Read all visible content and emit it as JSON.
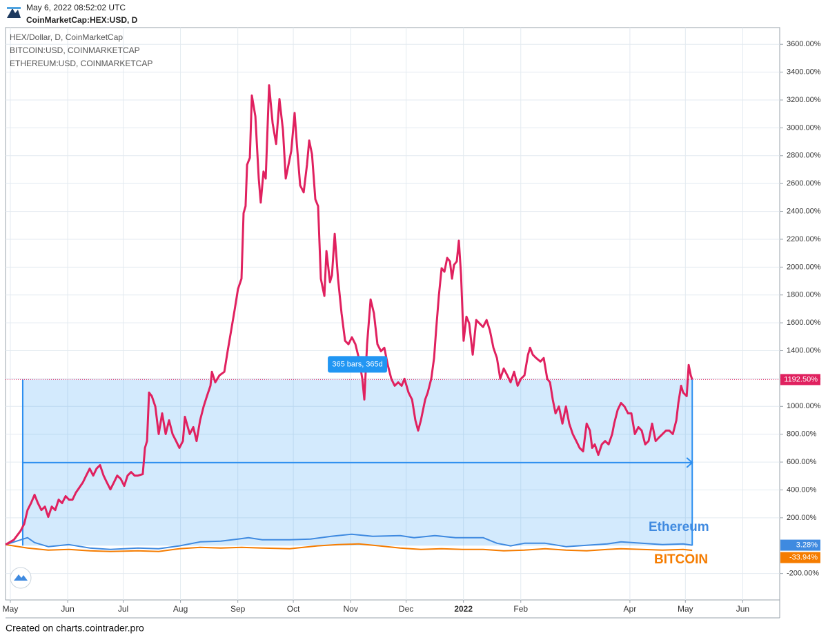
{
  "chart_data": {
    "type": "line",
    "subtitle": "May 6, 2022 08:52:02 UTC",
    "title": "CoinMarketCap:HEX:USD, D",
    "footer": "Created on charts.cointrader.pro",
    "annotations": [
      "Ethereum",
      "BITCOIN"
    ],
    "measure": {
      "label": "365 bars, 365d",
      "x": [
        6.7,
        368.7
      ],
      "y": [
        0,
        1192.5
      ]
    },
    "xlim": [
      -2.61,
      416.0
    ],
    "xticks": [
      {
        "value": 0,
        "label": "May"
      },
      {
        "value": 31,
        "label": "Jun"
      },
      {
        "value": 61,
        "label": "Jul"
      },
      {
        "value": 92,
        "label": "Aug"
      },
      {
        "value": 123,
        "label": "Sep"
      },
      {
        "value": 153,
        "label": "Oct"
      },
      {
        "value": 184,
        "label": "Nov"
      },
      {
        "value": 214,
        "label": "Dec"
      },
      {
        "value": 245,
        "label": "2022"
      },
      {
        "value": 276,
        "label": "Feb"
      },
      {
        "value": 335,
        "label": "Apr"
      },
      {
        "value": 365,
        "label": "May"
      },
      {
        "value": 396,
        "label": "Jun"
      }
    ],
    "ylim": [
      -390,
      3720
    ],
    "yticks": [
      {
        "value": -200,
        "label": "-200.00%"
      },
      {
        "value": 200,
        "label": "200.00%"
      },
      {
        "value": 400,
        "label": "400.00%"
      },
      {
        "value": 600,
        "label": "600.00%"
      },
      {
        "value": 800,
        "label": "800.00%"
      },
      {
        "value": 1000,
        "label": "1000.00%"
      },
      {
        "value": 1200,
        "label": "1200.00%"
      },
      {
        "value": 1400,
        "label": "1400.00%"
      },
      {
        "value": 1600,
        "label": "1600.00%"
      },
      {
        "value": 1800,
        "label": "1800.00%"
      },
      {
        "value": 2000,
        "label": "2000.00%"
      },
      {
        "value": 2200,
        "label": "2200.00%"
      },
      {
        "value": 2400,
        "label": "2400.00%"
      },
      {
        "value": 2600,
        "label": "2600.00%"
      },
      {
        "value": 2800,
        "label": "2800.00%"
      },
      {
        "value": 3000,
        "label": "3000.00%"
      },
      {
        "value": 3200,
        "label": "3200.00%"
      },
      {
        "value": 3400,
        "label": "3400.00%"
      },
      {
        "value": 3600,
        "label": "3600.00%"
      }
    ],
    "grid": true,
    "series": [
      {
        "name": "HEX/Dollar, D, CoinMarketCap",
        "color": "#e0215f",
        "last_value_label": "1192.50%",
        "x": [
          -2.6,
          1.9,
          5.6,
          7.5,
          9.3,
          11.2,
          13.1,
          14.9,
          16.8,
          18.7,
          20.5,
          22.4,
          24.3,
          26.1,
          28.0,
          29.9,
          31.7,
          33.6,
          35.4,
          39.2,
          41.0,
          42.9,
          44.8,
          46.6,
          48.5,
          50.4,
          52.2,
          54.1,
          56.0,
          57.8,
          59.7,
          61.6,
          63.4,
          65.3,
          67.2,
          69.0,
          71.6,
          72.8,
          73.9,
          75.0,
          76.5,
          78.4,
          80.2,
          82.1,
          84.0,
          85.8,
          87.7,
          89.6,
          91.4,
          93.3,
          94.4,
          97.0,
          98.9,
          100.7,
          102.6,
          104.5,
          106.3,
          108.2,
          109.0,
          110.8,
          113.1,
          115.7,
          117.5,
          119.4,
          121.3,
          123.1,
          125.0,
          126.1,
          127.2,
          128.0,
          129.5,
          130.6,
          132.5,
          134.3,
          135.4,
          136.9,
          138.1,
          139.9,
          141.8,
          143.7,
          145.5,
          147.4,
          148.9,
          150.4,
          151.9,
          153.7,
          154.9,
          156.7,
          158.6,
          160.4,
          161.6,
          163.1,
          164.9,
          166.4,
          167.9,
          169.8,
          170.9,
          172.8,
          173.9,
          175.4,
          177.2,
          179.1,
          181.0,
          182.8,
          184.7,
          186.6,
          188.4,
          190.3,
          191.4,
          192.9,
          194.8,
          196.6,
          198.5,
          200.4,
          202.2,
          204.1,
          206.0,
          207.8,
          209.7,
          211.6,
          213.1,
          215.3,
          217.2,
          219.0,
          220.5,
          222.0,
          224.3,
          225.7,
          227.6,
          229.1,
          230.2,
          231.7,
          233.2,
          234.7,
          236.2,
          237.7,
          238.8,
          239.9,
          241.4,
          242.5,
          243.7,
          245.1,
          246.6,
          248.1,
          250.0,
          251.9,
          253.7,
          255.6,
          257.5,
          259.3,
          261.2,
          263.1,
          264.9,
          266.8,
          268.7,
          270.5,
          272.4,
          274.3,
          276.1,
          278.0,
          279.9,
          281.0,
          282.5,
          284.3,
          286.6,
          288.4,
          290.3,
          291.8,
          293.3,
          294.8,
          296.6,
          298.5,
          300.4,
          302.2,
          304.1,
          306.0,
          307.8,
          309.7,
          311.6,
          313.4,
          314.6,
          316.0,
          317.9,
          319.8,
          321.6,
          323.5,
          325.4,
          326.5,
          328.4,
          330.2,
          332.1,
          334.0,
          335.8,
          337.7,
          339.6,
          341.4,
          343.3,
          345.1,
          347.0,
          348.9,
          350.7,
          352.6,
          354.5,
          356.3,
          358.2,
          360.1,
          361.2,
          362.7,
          363.8,
          365.7,
          366.8,
          367.9,
          368.7
        ],
        "values": [
          7,
          42,
          107,
          156,
          255,
          305,
          365,
          305,
          255,
          280,
          206,
          280,
          255,
          330,
          305,
          355,
          330,
          330,
          380,
          454,
          503,
          553,
          503,
          553,
          578,
          503,
          454,
          404,
          454,
          503,
          479,
          429,
          503,
          528,
          503,
          503,
          513,
          702,
          751,
          1099,
          1074,
          999,
          801,
          950,
          801,
          900,
          801,
          751,
          702,
          751,
          925,
          801,
          851,
          751,
          900,
          999,
          1074,
          1148,
          1248,
          1173,
          1223,
          1248,
          1396,
          1545,
          1694,
          1843,
          1917,
          2388,
          2438,
          2735,
          2785,
          3232,
          3083,
          2636,
          2463,
          2686,
          2636,
          3306,
          3033,
          2884,
          3207,
          2983,
          2636,
          2735,
          2834,
          3107,
          2884,
          2587,
          2537,
          2735,
          2909,
          2810,
          2487,
          2438,
          1917,
          1793,
          2115,
          1892,
          1942,
          2239,
          1917,
          1669,
          1471,
          1446,
          1496,
          1446,
          1347,
          1198,
          1049,
          1446,
          1768,
          1669,
          1446,
          1396,
          1421,
          1297,
          1198,
          1148,
          1173,
          1148,
          1198,
          1099,
          1049,
          900,
          826,
          900,
          1049,
          1099,
          1198,
          1347,
          1545,
          1793,
          1992,
          1967,
          2066,
          2041,
          1917,
          2016,
          2041,
          2190,
          1942,
          1471,
          1644,
          1595,
          1371,
          1620,
          1595,
          1570,
          1620,
          1545,
          1421,
          1347,
          1198,
          1272,
          1223,
          1173,
          1248,
          1148,
          1198,
          1223,
          1371,
          1421,
          1371,
          1347,
          1322,
          1347,
          1198,
          1173,
          1049,
          950,
          999,
          876,
          999,
          876,
          801,
          751,
          702,
          677,
          876,
          826,
          702,
          727,
          652,
          727,
          751,
          727,
          801,
          876,
          975,
          1024,
          999,
          950,
          950,
          801,
          851,
          826,
          727,
          751,
          876,
          751,
          776,
          801,
          826,
          826,
          801,
          900,
          1024,
          1148,
          1099,
          1074,
          1297,
          1223,
          1192.5
        ]
      },
      {
        "name": "BITCOIN:USD, COINMARKETCAP",
        "color": "#f57c00",
        "last_value_label": "-33.94%",
        "x": [
          -2.6,
          9.3,
          20.5,
          31.7,
          42.9,
          54.1,
          69.0,
          80.2,
          91.4,
          102.6,
          113.8,
          125.0,
          136.2,
          151.1,
          166.0,
          177.2,
          188.4,
          199.6,
          210.8,
          222.0,
          233.2,
          244.4,
          255.6,
          266.8,
          278.0,
          289.2,
          300.4,
          311.6,
          322.8,
          330.2,
          341.4,
          352.6,
          363.8,
          368.7
        ],
        "values": [
          7,
          -17,
          -32,
          -27,
          -37,
          -42,
          -37,
          -42,
          -22,
          -12,
          -17,
          -12,
          -17,
          -22,
          -2,
          7,
          12,
          -2,
          -17,
          -27,
          -22,
          -27,
          -27,
          -37,
          -32,
          -22,
          -32,
          -37,
          -27,
          -22,
          -27,
          -32,
          -27,
          -33.94
        ]
      },
      {
        "name": "ETHEREUM:USD, COINMARKETCAP",
        "color": "#3f8ae0",
        "last_value_label": "3.28%",
        "x": [
          -2.6,
          5.6,
          9.3,
          13.1,
          20.5,
          31.7,
          42.9,
          54.1,
          69.0,
          80.2,
          91.4,
          102.6,
          113.8,
          123.1,
          128.7,
          136.2,
          151.1,
          162.3,
          173.5,
          184.7,
          195.9,
          210.8,
          218.3,
          229.5,
          240.7,
          255.6,
          263.1,
          270.5,
          278.0,
          289.2,
          300.4,
          311.6,
          322.8,
          330.2,
          341.4,
          352.6,
          363.8,
          368.7
        ],
        "values": [
          7,
          42,
          57,
          22,
          -7,
          7,
          -17,
          -27,
          -17,
          -22,
          -2,
          27,
          32,
          47,
          57,
          42,
          42,
          47,
          67,
          82,
          67,
          72,
          57,
          72,
          57,
          57,
          17,
          -2,
          17,
          17,
          -7,
          2,
          12,
          27,
          17,
          7,
          12,
          3.28
        ]
      }
    ]
  }
}
